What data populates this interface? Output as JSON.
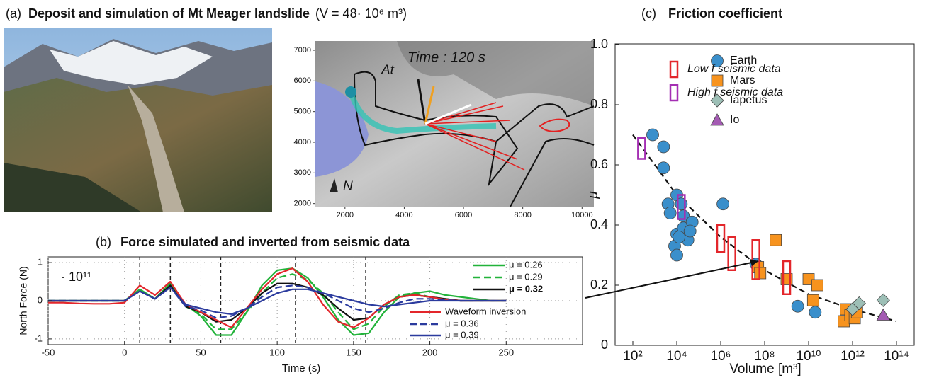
{
  "chart_data": [
    {
      "type": "map",
      "panel": "(a)",
      "title": "Deposit and simulation of Mt Meager landslide",
      "subtitle": "(V = 48· 10⁶ m³)",
      "annotations": [
        "Time : 120 s",
        "At",
        "N"
      ],
      "xlim": [
        1000,
        10400
      ],
      "ylim": [
        1900,
        7300
      ],
      "xticks": [
        2000,
        4000,
        6000,
        8000,
        10000
      ],
      "yticks": [
        2000,
        3000,
        4000,
        5000,
        6000,
        7000
      ]
    },
    {
      "type": "line",
      "panel": "(b)",
      "title": "Force simulated and inverted from seismic data",
      "ylabel": "North Force (N)",
      "xlabel": "Time (s)",
      "scale_note": "· 10¹¹",
      "xlim": [
        -50,
        300
      ],
      "ylim": [
        -1.15,
        1.15
      ],
      "xticks": [
        -50,
        0,
        50,
        100,
        150,
        200,
        250
      ],
      "yticks": [
        -1,
        0,
        1
      ],
      "grid": true,
      "vlines": [
        10,
        30,
        63,
        112,
        158
      ],
      "x": [
        -50,
        -40,
        -30,
        -20,
        -10,
        0,
        10,
        20,
        30,
        40,
        50,
        60,
        70,
        80,
        90,
        100,
        110,
        120,
        130,
        140,
        150,
        160,
        170,
        180,
        190,
        200,
        210,
        220,
        230,
        240,
        250
      ],
      "series": [
        {
          "name": "μ = 0.26",
          "color": "#22b33a",
          "dash": false,
          "bold": false,
          "values": [
            0,
            0,
            0,
            0,
            0,
            0,
            0.3,
            0.05,
            0.45,
            -0.1,
            -0.4,
            -0.9,
            -0.9,
            -0.3,
            0.4,
            0.8,
            0.85,
            0.6,
            0.1,
            -0.5,
            -0.9,
            -0.85,
            -0.3,
            0.1,
            0.2,
            0.25,
            0.15,
            0.1,
            0.05,
            0,
            0
          ]
        },
        {
          "name": "μ = 0.29",
          "color": "#22b33a",
          "dash": true,
          "bold": false,
          "values": [
            0,
            0,
            0,
            0,
            0,
            0,
            0.28,
            0.05,
            0.45,
            -0.15,
            -0.35,
            -0.75,
            -0.75,
            -0.3,
            0.2,
            0.6,
            0.7,
            0.55,
            0.2,
            -0.3,
            -0.75,
            -0.6,
            -0.15,
            0.15,
            0.2,
            0.1,
            0.05,
            0,
            0,
            0,
            0
          ]
        },
        {
          "name": "μ = 0.32",
          "color": "#111111",
          "dash": false,
          "bold": true,
          "values": [
            0,
            0,
            0,
            0,
            0,
            0,
            0.25,
            0.05,
            0.4,
            -0.15,
            -0.3,
            -0.55,
            -0.5,
            -0.2,
            0.2,
            0.45,
            0.45,
            0.35,
            0.15,
            -0.2,
            -0.5,
            -0.45,
            -0.1,
            0.1,
            0.15,
            0.1,
            0.05,
            0,
            0,
            0,
            0
          ]
        },
        {
          "name": "Waveform inversion",
          "color": "#e3262b",
          "dash": false,
          "bold": false,
          "values": [
            -0.05,
            -0.05,
            -0.07,
            -0.08,
            -0.08,
            -0.05,
            0.4,
            0.15,
            0.5,
            -0.1,
            -0.3,
            -0.5,
            -0.7,
            -0.2,
            0.3,
            0.7,
            0.85,
            0.5,
            -0.1,
            -0.55,
            -0.7,
            -0.45,
            -0.1,
            0.1,
            0.15,
            0.1,
            0.03,
            0,
            0,
            0,
            0
          ]
        },
        {
          "name": "μ = 0.36",
          "color": "#2b3b9e",
          "dash": true,
          "bold": false,
          "values": [
            0,
            0,
            0,
            0,
            0,
            0,
            0.25,
            0.05,
            0.35,
            -0.15,
            -0.25,
            -0.45,
            -0.4,
            -0.2,
            0.1,
            0.35,
            0.4,
            0.35,
            0.2,
            0,
            -0.2,
            -0.3,
            -0.2,
            -0.05,
            0.05,
            0.05,
            0.02,
            0,
            0,
            0,
            0
          ]
        },
        {
          "name": "μ = 0.39",
          "color": "#2b3b9e",
          "dash": false,
          "bold": false,
          "values": [
            0,
            0,
            0,
            0,
            0,
            0,
            0.25,
            0.05,
            0.35,
            -0.1,
            -0.2,
            -0.3,
            -0.35,
            -0.2,
            0,
            0.2,
            0.3,
            0.3,
            0.2,
            0.1,
            0,
            -0.1,
            -0.15,
            -0.1,
            -0.05,
            0,
            0,
            0,
            0,
            0,
            0
          ]
        }
      ]
    },
    {
      "type": "scatter",
      "panel": "(c)",
      "title": "Friction coefficient",
      "xlabel": "Volume [m³]",
      "ylabel": "μ",
      "xscale": "log",
      "xlim": [
        100,
        100000000000000.0
      ],
      "ylim": [
        0,
        1
      ],
      "xticks": [
        {
          "value": 100,
          "label": "10²"
        },
        {
          "value": 10000.0,
          "label": "10⁴"
        },
        {
          "value": 1000000.0,
          "label": "10⁶"
        },
        {
          "value": 100000000.0,
          "label": "10⁸"
        },
        {
          "value": 10000000000.0,
          "label": "10¹⁰"
        },
        {
          "value": 1000000000000.0,
          "label": "10¹²"
        },
        {
          "value": 100000000000000.0,
          "label": "10¹⁴"
        }
      ],
      "yticks": [
        0,
        0.2,
        0.4,
        0.6,
        0.8,
        {
          "value": 1,
          "label": "1.0"
        }
      ],
      "series": [
        {
          "name": "Earth",
          "color": "#3a8fcb",
          "marker": "circle",
          "x": [
            800,
            2500,
            2500,
            4000,
            5000,
            10000,
            16000,
            20000,
            10000,
            8000,
            10000,
            20000,
            32000,
            50000,
            40000,
            1260000,
            40000000,
            3200000000,
            20000000000,
            12600
          ],
          "values": [
            0.7,
            0.66,
            0.59,
            0.47,
            0.44,
            0.5,
            0.47,
            0.43,
            0.37,
            0.33,
            0.3,
            0.39,
            0.35,
            0.41,
            0.38,
            0.47,
            0.27,
            0.13,
            0.11,
            0.36
          ]
        },
        {
          "name": "Mars",
          "color": "#f7931e",
          "marker": "square",
          "x": [
            50000000,
            63000000,
            320000000,
            1000000000,
            10000000000,
            16000000000,
            25000000000,
            400000000000,
            500000000000,
            800000000000,
            1260000000000,
            1600000000000
          ],
          "values": [
            0.26,
            0.24,
            0.35,
            0.22,
            0.22,
            0.15,
            0.2,
            0.08,
            0.12,
            0.1,
            0.09,
            0.11
          ]
        },
        {
          "name": "Iapetus",
          "color": "#9dbfb6",
          "marker": "diamond",
          "x": [
            1000000000000,
            2000000000000,
            25000000000000
          ],
          "values": [
            0.12,
            0.14,
            0.15
          ]
        },
        {
          "name": "Io",
          "color": "#a45bb3",
          "marker": "triangle",
          "x": [
            25000000000000
          ],
          "values": [
            0.1
          ]
        }
      ],
      "fit": {
        "x": [
          100,
          10000.0,
          1000000.0,
          100000000.0,
          10000000000.0,
          1000000000000.0,
          100000000000000.0
        ],
        "values": [
          0.7,
          0.5,
          0.36,
          0.25,
          0.17,
          0.12,
          0.08
        ]
      },
      "seismic": [
        {
          "name": "Low f seismic data",
          "color": "#e3262b",
          "x": [
            1000000,
            3200000,
            40000000,
            1000000000
          ],
          "low": [
            0.31,
            0.25,
            0.22,
            0.17
          ],
          "high": [
            0.4,
            0.36,
            0.35,
            0.28
          ]
        },
        {
          "name": "High f seismic data",
          "color": "#a42fb3",
          "x": [
            250,
            16000
          ],
          "low": [
            0.62,
            0.42
          ],
          "high": [
            0.69,
            0.5
          ]
        }
      ]
    }
  ]
}
